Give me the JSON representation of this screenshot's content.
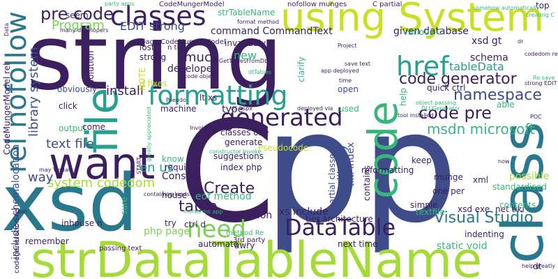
{
  "palette": {
    "navy": "#404b8a",
    "indigo": "#3b1f5e",
    "deep_purple": "#481b6d",
    "blue": "#3e4c8a",
    "teal": "#2a788e",
    "sea": "#25a18e",
    "green": "#35b779",
    "lime": "#7ad151",
    "yellow_green": "#a5db36",
    "yellow": "#c8e020"
  },
  "words": [
    {
      "text": "string",
      "color": "#3b1f5e"
    },
    {
      "text": "pp",
      "color": "#3e4c8a"
    },
    {
      "text": "C",
      "color": "#3b1f5e"
    },
    {
      "text": "xsd",
      "color": "#2a788e"
    },
    {
      "text": "strDataTableName",
      "color": "#a5db36"
    },
    {
      "text": "class",
      "color": "#2a788e"
    },
    {
      "text": "using System",
      "color": "#c8e020"
    },
    {
      "text": "code",
      "color": "#35b779"
    },
    {
      "text": "want",
      "color": "#3b1f5e"
    },
    {
      "text": "file",
      "color": "#25a18e"
    },
    {
      "text": "classes",
      "color": "#3b1f5e"
    },
    {
      "text": "formatting",
      "color": "#25a18e"
    },
    {
      "text": "generated",
      "color": "#3b1f5e"
    },
    {
      "text": "rel nofollow",
      "color": "#2a788e"
    },
    {
      "text": "href",
      "color": "#25a18e"
    },
    {
      "text": "DataTable",
      "color": "#3b1f5e"
    },
    {
      "text": "need",
      "color": "#7ad151"
    },
    {
      "text": "pre code",
      "color": "#3b1f5e"
    },
    {
      "text": "EDIT strong",
      "color": "#3e4c8a"
    },
    {
      "text": "Program",
      "color": "#7ad151"
    },
    {
      "text": "code generator",
      "color": "#3b1f5e"
    },
    {
      "text": "namespace",
      "color": "#3e4c8a"
    },
    {
      "text": "code pre",
      "color": "#3b1f5e"
    },
    {
      "text": "msdn microsoft",
      "color": "#35b779"
    },
    {
      "text": "Visual Studio",
      "color": "#2a788e"
    },
    {
      "text": "text file",
      "color": "#3e4c8a"
    },
    {
      "text": "system codedom",
      "color": "#a5db36"
    },
    {
      "text": "Create",
      "color": "#3b1f5e"
    },
    {
      "text": "table",
      "color": "#3b1f5e"
    },
    {
      "text": "tableData",
      "color": "#25a18e"
    },
    {
      "text": "much",
      "color": "#3b1f5e"
    },
    {
      "text": "install",
      "color": "#3b1f5e"
    },
    {
      "text": "library system",
      "color": "#3e4c8a"
    },
    {
      "text": "en us",
      "color": "#25a18e"
    },
    {
      "text": "way",
      "color": "#3e4c8a"
    },
    {
      "text": "command CommandText",
      "color": "#3b1f5e"
    },
    {
      "text": "given database",
      "color": "#3b1f5e"
    },
    {
      "text": "eof method",
      "color": "#35b779"
    },
    {
      "text": "developer",
      "color": "#3b1f5e"
    },
    {
      "text": "Console",
      "color": "#3b1f5e"
    },
    {
      "text": "generation",
      "color": "#3b1f5e"
    },
    {
      "text": "xs include",
      "color": "#3b1f5e"
    },
    {
      "text": "php page",
      "color": "#7ad151"
    },
    {
      "text": "CodeMungerModel rel",
      "color": "#3b1f5e"
    },
    {
      "text": "include schemalocation",
      "color": "#3e4c8a"
    },
    {
      "text": "obviously",
      "color": "#3e4c8a"
    },
    {
      "text": "lost",
      "color": "#3b1f5e"
    },
    {
      "text": "strong",
      "color": "#3b1f5e"
    },
    {
      "text": "new",
      "color": "#35b779"
    },
    {
      "text": "schema",
      "color": "#3b1f5e"
    },
    {
      "text": "house",
      "color": "#3b1f5e"
    },
    {
      "text": "xsd gt",
      "color": "#3b1f5e"
    },
    {
      "text": "type",
      "color": "#3b1f5e"
    },
    {
      "text": "lt xs",
      "color": "#3b1f5e"
    },
    {
      "text": "output",
      "color": "#35b779"
    },
    {
      "text": "click",
      "color": "#3b1f5e"
    },
    {
      "text": "come",
      "color": "#3b1f5e"
    },
    {
      "text": "Pseudocode",
      "color": "#c8e020"
    },
    {
      "text": "classes one",
      "color": "#3b1f5e"
    },
    {
      "text": "generate",
      "color": "#3b1f5e"
    },
    {
      "text": "suggestions",
      "color": "#3b1f5e"
    },
    {
      "text": "index php",
      "color": "#3b1f5e"
    },
    {
      "text": "require",
      "color": "#3b1f5e"
    },
    {
      "text": "know",
      "color": "#35b779"
    },
    {
      "text": "remember",
      "color": "#3b1f5e"
    },
    {
      "text": "inhouse n",
      "color": "#3b1f5e"
    },
    {
      "text": "automate",
      "color": "#3b1f5e"
    },
    {
      "text": "tier architecture",
      "color": "#3b1f5e"
    },
    {
      "text": "static void",
      "color": "#35b779"
    },
    {
      "text": "xsd exe",
      "color": "#3b1f5e"
    },
    {
      "text": "net tiki",
      "color": "#3b1f5e"
    },
    {
      "text": "contents",
      "color": "#35b779"
    },
    {
      "text": "indenting",
      "color": "#3b1f5e"
    },
    {
      "text": "possible",
      "color": "#a5db36"
    },
    {
      "text": "standardised",
      "color": "#35b779"
    },
    {
      "text": "xml",
      "color": "#3b1f5e"
    },
    {
      "text": "one per",
      "color": "#3b1f5e"
    },
    {
      "text": "munge",
      "color": "#3b1f5e"
    },
    {
      "text": "simple",
      "color": "#3b1f5e"
    },
    {
      "text": "textfile",
      "color": "#35b779"
    },
    {
      "text": "reformatting",
      "color": "#3b1f5e"
    },
    {
      "text": "keep",
      "color": "#3b1f5e"
    },
    {
      "text": "contains",
      "color": "#3b1f5e"
    },
    {
      "text": "us library",
      "color": "#3e4c8a"
    },
    {
      "text": "tiki index",
      "color": "#3e4c8a"
    },
    {
      "text": "partial classes",
      "color": "#3e4c8a"
    },
    {
      "text": "machine",
      "color": "#3b1f5e"
    },
    {
      "text": "try",
      "color": "#3b1f5e"
    },
    {
      "text": "sure",
      "color": "#35b779"
    },
    {
      "text": "used",
      "color": "#35b779"
    },
    {
      "text": "open",
      "color": "#3e4c8a"
    },
    {
      "text": "clarify",
      "color": "#35b779"
    },
    {
      "text": "help",
      "color": "#35b779"
    },
    {
      "text": "dt",
      "color": "#3b1f5e"
    },
    {
      "text": "top",
      "color": "#3b1f5e"
    },
    {
      "text": "able",
      "color": "#35b779"
    },
    {
      "text": "seem",
      "color": "#3b1f5e"
    },
    {
      "text": "various C",
      "color": "#35b779"
    },
    {
      "text": "solution",
      "color": "#3b1f5e"
    },
    {
      "text": "next time",
      "color": "#3b1f5e"
    },
    {
      "text": "3rd party",
      "color": "#3b1f5e"
    },
    {
      "text": "passing text",
      "color": "#3b1f5e"
    },
    {
      "text": "awry",
      "color": "#3b1f5e"
    },
    {
      "text": "invariably",
      "color": "#3b1f5e"
    },
    {
      "text": "n tier",
      "color": "#3b1f5e"
    },
    {
      "text": "d fixes",
      "color": "#c8e020"
    },
    {
      "text": "ctrl d",
      "color": "#3b1f5e"
    },
    {
      "text": "quick ctrl",
      "color": "#3b1f5e"
    },
    {
      "text": "nofollow munges",
      "color": "#3b1f5e"
    },
    {
      "text": "C partial",
      "color": "#3b1f5e"
    },
    {
      "text": "strTableName",
      "color": "#35b779"
    },
    {
      "text": "CodeMungerModel",
      "color": "#3b1f5e"
    },
    {
      "text": "page CodeMungerModel",
      "color": "#3b1f5e"
    },
    {
      "text": "many developers",
      "color": "#3b1f5e"
    },
    {
      "text": "party apps",
      "color": "#35b779"
    },
    {
      "text": "format method",
      "color": "#3b1f5e"
    },
    {
      "text": "Invoke format",
      "color": "#3b1f5e"
    },
    {
      "text": "constructor Invoke",
      "color": "#35b779"
    },
    {
      "text": "containing loads",
      "color": "#3b1f5e"
    },
    {
      "text": "tool installed",
      "color": "#3b1f5e"
    },
    {
      "text": "app deployed",
      "color": "#3b1f5e"
    },
    {
      "text": "deployed via",
      "color": "#3b1f5e"
    },
    {
      "text": "greatly appreciated",
      "color": "#35b779"
    },
    {
      "text": "help greatly",
      "color": "#3b1f5e"
    },
    {
      "text": "object passing",
      "color": "#35b779"
    },
    {
      "text": "codegeneration rel",
      "color": "#3b1f5e"
    },
    {
      "text": "method Re",
      "color": "#35b779"
    },
    {
      "text": "dtTables",
      "color": "#35b779"
    },
    {
      "text": "Project",
      "color": "#3b1f5e"
    },
    {
      "text": "save text",
      "color": "#3b1f5e"
    },
    {
      "text": "Re save",
      "color": "#35b779"
    },
    {
      "text": "strong EDIT",
      "color": "#3b1f5e"
    },
    {
      "text": "time",
      "color": "#3b1f5e"
    },
    {
      "text": "GetTablesFromDb",
      "color": "#3b1f5e"
    },
    {
      "text": "codedom rel",
      "color": "#3b1f5e"
    },
    {
      "text": "Data",
      "color": "#3b1f5e"
    },
    {
      "text": "VS aspx",
      "color": "#3b1f5e"
    },
    {
      "text": "somehow automatically",
      "color": "#35b779"
    },
    {
      "text": "creating C",
      "color": "#35b779"
    },
    {
      "text": "DLLGenerator",
      "color": "#35b779"
    },
    {
      "text": "code object",
      "color": "#3b1f5e"
    },
    {
      "text": "minforms app",
      "color": "#35b779"
    },
    {
      "text": "may Visual",
      "color": "#3b1f5e"
    },
    {
      "text": "NOTE",
      "color": "#c8e020"
    },
    {
      "text": "START",
      "color": "#3b1f5e"
    },
    {
      "text": "POC",
      "color": "#3b1f5e"
    },
    {
      "text": "bin",
      "color": "#3b1f5e"
    },
    {
      "text": "now",
      "color": "#3b1f5e"
    },
    {
      "text": "dr",
      "color": "#3b1f5e"
    },
    {
      "text": "Pseudo",
      "color": "#3b1f5e"
    }
  ]
}
